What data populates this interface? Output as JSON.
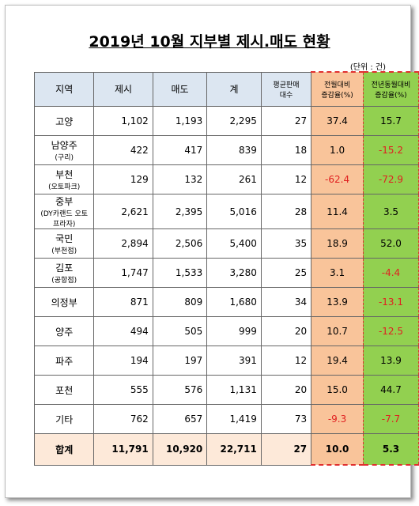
{
  "header": {
    "title": "2019년 10월 지부별 제시.매도 현황",
    "unit": "(단위 : 건)"
  },
  "table": {
    "columns": [
      [
        "지역"
      ],
      [
        "제시"
      ],
      [
        "매도"
      ],
      [
        "계"
      ],
      [
        "평균판매",
        "대수"
      ],
      [
        "전월대비",
        "증감율(%)"
      ],
      [
        "전년동월대비",
        "증감율(%)"
      ]
    ],
    "rows": [
      {
        "region": [
          "고양"
        ],
        "values": [
          "1,102",
          "1,193",
          "2,295",
          "27",
          "37.4",
          "15.7"
        ]
      },
      {
        "region": [
          "남양주",
          "(구리)"
        ],
        "values": [
          "422",
          "417",
          "839",
          "18",
          "1.0",
          "-15.2"
        ]
      },
      {
        "region": [
          "부천",
          "(오토파크)"
        ],
        "values": [
          "129",
          "132",
          "261",
          "12",
          "-62.4",
          "-72.9"
        ]
      },
      {
        "region": [
          "중부",
          "(DY카랜드 오토프라자)"
        ],
        "values": [
          "2,621",
          "2,395",
          "5,016",
          "28",
          "11.4",
          "3.5"
        ]
      },
      {
        "region": [
          "국민",
          "(부천점)"
        ],
        "values": [
          "2,894",
          "2,506",
          "5,400",
          "35",
          "18.9",
          "52.0"
        ]
      },
      {
        "region": [
          "김포",
          "(공항점)"
        ],
        "values": [
          "1,747",
          "1,533",
          "3,280",
          "25",
          "3.1",
          "-4.4"
        ]
      },
      {
        "region": [
          "의정부"
        ],
        "values": [
          "871",
          "809",
          "1,680",
          "34",
          "13.9",
          "-13.1"
        ]
      },
      {
        "region": [
          "양주"
        ],
        "values": [
          "494",
          "505",
          "999",
          "20",
          "10.7",
          "-12.5"
        ]
      },
      {
        "region": [
          "파주"
        ],
        "values": [
          "194",
          "197",
          "391",
          "12",
          "19.4",
          "13.9"
        ]
      },
      {
        "region": [
          "포천"
        ],
        "values": [
          "555",
          "576",
          "1,131",
          "20",
          "15.0",
          "44.7"
        ]
      },
      {
        "region": [
          "기타"
        ],
        "values": [
          "762",
          "657",
          "1,419",
          "73",
          "-9.3",
          "-7.7"
        ]
      }
    ],
    "total": {
      "region": [
        "합계"
      ],
      "values": [
        "11,791",
        "10,920",
        "22,711",
        "27",
        "10.0",
        "5.3"
      ]
    }
  }
}
